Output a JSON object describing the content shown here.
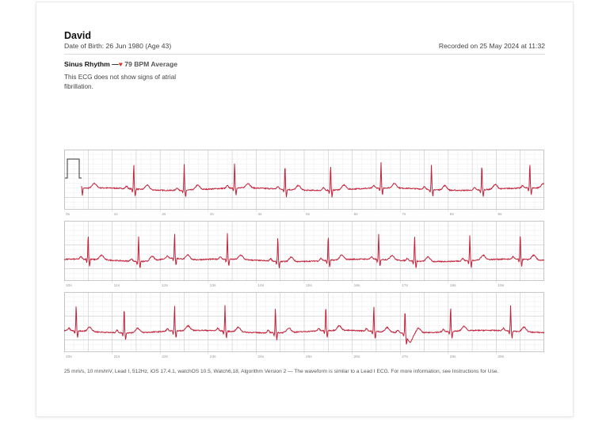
{
  "patient": {
    "name": "David",
    "dob_line": "Date of Birth: 26 Jun 1980 (Age 43)",
    "recorded_line": "Recorded on 25 May 2024 at 11:32"
  },
  "result": {
    "classification": "Sinus Rhythm",
    "dash": "—",
    "heart_glyph": "♥",
    "bpm_text": "79 BPM Average",
    "summary": "This ECG does not show signs of atrial fibrillation."
  },
  "strips": [
    {
      "time_labels": [
        "0s",
        "1s",
        "2s",
        "3s",
        "4s",
        "5s",
        "6s",
        "7s",
        "8s",
        "9s"
      ]
    },
    {
      "time_labels": [
        "10s",
        "11s",
        "12s",
        "13s",
        "14s",
        "15s",
        "16s",
        "17s",
        "18s",
        "19s"
      ]
    },
    {
      "time_labels": [
        "20s",
        "21s",
        "22s",
        "23s",
        "24s",
        "25s",
        "26s",
        "27s",
        "28s",
        "29s"
      ]
    }
  ],
  "footnote": "25 mm/s, 10 mm/mV, Lead I, 512Hz, iOS 17.4.1, watchOS 10.5, Watch6,18, Algorithm Version 2 — The waveform is similar to a Lead I ECG. For more information, see Instructions for Use.",
  "colors": {
    "trace": "#c2223a",
    "grid_major": "#c9c9c9",
    "grid_minor": "#ececec"
  }
}
